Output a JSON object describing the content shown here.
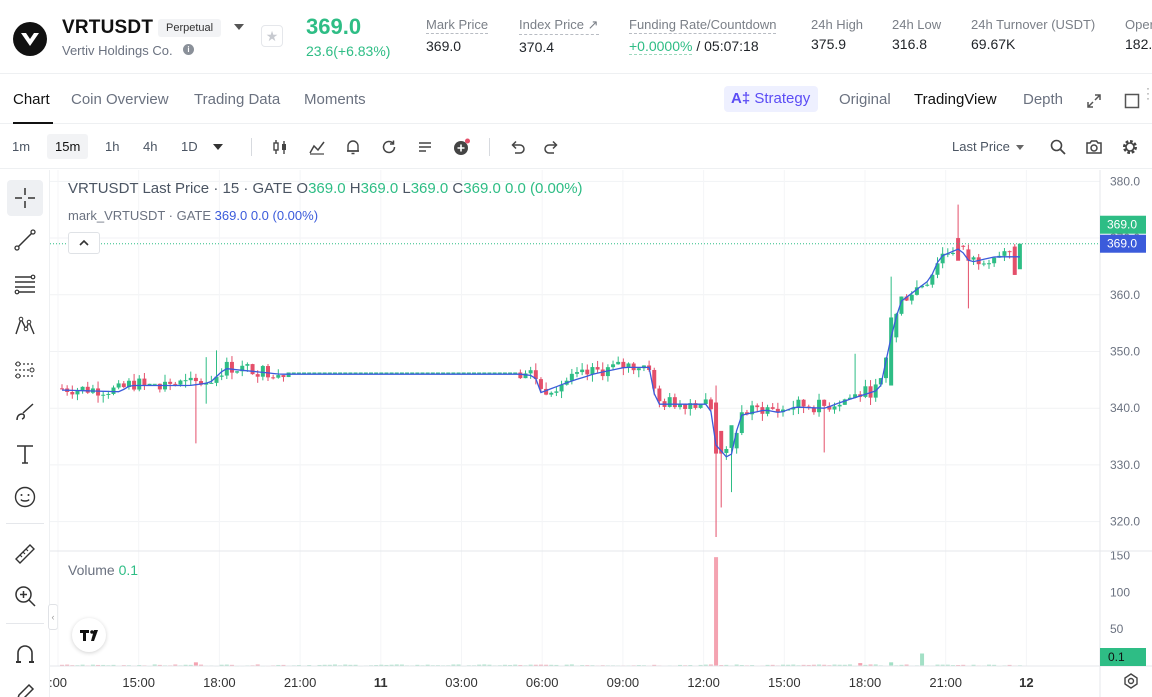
{
  "header": {
    "symbol": "VRTUSDT",
    "contract_type": "Perpetual",
    "company": "Vertiv Holdings Co.",
    "last_price": "369.0",
    "change": "23.6(+6.83%)",
    "stats": [
      {
        "label": "Mark Price",
        "value": "369.0"
      },
      {
        "label": "Index Price ↗",
        "value": "370.4"
      },
      {
        "label": "Funding Rate/Countdown",
        "value_green": "+0.0000%",
        "value": " / 05:07:18"
      },
      {
        "label": "24h High",
        "value": "375.9"
      },
      {
        "label": "24h Low",
        "value": "316.8"
      },
      {
        "label": "24h Turnover (USDT)",
        "value": "69.67K"
      },
      {
        "label": "Oper",
        "value": "182."
      }
    ]
  },
  "tabs": [
    "Chart",
    "Coin Overview",
    "Trading Data",
    "Moments"
  ],
  "views": {
    "strategy": "Strategy",
    "original": "Original",
    "tradingview": "TradingView",
    "depth": "Depth"
  },
  "toolbar": {
    "intervals": [
      "1m",
      "15m",
      "1h",
      "4h",
      "1D"
    ],
    "active_interval": "15m",
    "price_type": "Last Price",
    "icons": [
      "candles-icon",
      "indicators-icon",
      "alert-icon",
      "replay-icon",
      "templates-icon",
      "add-indicator-icon",
      "undo-icon",
      "redo-icon",
      "search-icon",
      "camera-icon",
      "settings-icon"
    ]
  },
  "left_tools": [
    "crosshair-icon",
    "trend-line-icon",
    "fib-lines-icon",
    "pattern-icon",
    "projection-icon",
    "brush-icon",
    "text-icon",
    "emoji-icon",
    "ruler-icon",
    "zoom-in-icon",
    "magnet-icon",
    "pencil-icon"
  ],
  "legend": {
    "title": "VRTUSDT Last Price · 15 · GATE",
    "o_label": "O",
    "o": "369.0",
    "h_label": "H",
    "h": "369.0",
    "l_label": "L",
    "l": "369.0",
    "c_label": "C",
    "c": "369.0",
    "chg": "0.0 (0.00%)",
    "mark_name": "mark_VRTUSDT · GATE",
    "mark_value": "369.0",
    "mark_chg": "0.0 (0.00%)",
    "volume_label": "Volume",
    "volume_value": "0.1"
  },
  "chart_data": {
    "type": "candlestick",
    "price_axis": {
      "ticks": [
        "380.0",
        "370.0",
        "360.0",
        "350.0",
        "340.0",
        "330.0",
        "320.0"
      ],
      "range": [
        315,
        382
      ]
    },
    "volume_axis": {
      "ticks": [
        "150",
        "100",
        "50"
      ],
      "range": [
        0,
        155
      ]
    },
    "time_ticks": [
      ":00",
      "15:00",
      "18:00",
      "21:00",
      "11",
      "03:00",
      "06:00",
      "09:00",
      "12:00",
      "15:00",
      "18:00",
      "21:00",
      "12"
    ],
    "last_price_label": "369.0",
    "mark_price_label": "369.0",
    "volume_last_label": "0.1",
    "colors": {
      "up": "#2ebd85",
      "down": "#e44f6a",
      "mark_line": "#3b5bdb",
      "volume_up": "#a3e0c6",
      "volume_down": "#f4a3b1"
    }
  }
}
